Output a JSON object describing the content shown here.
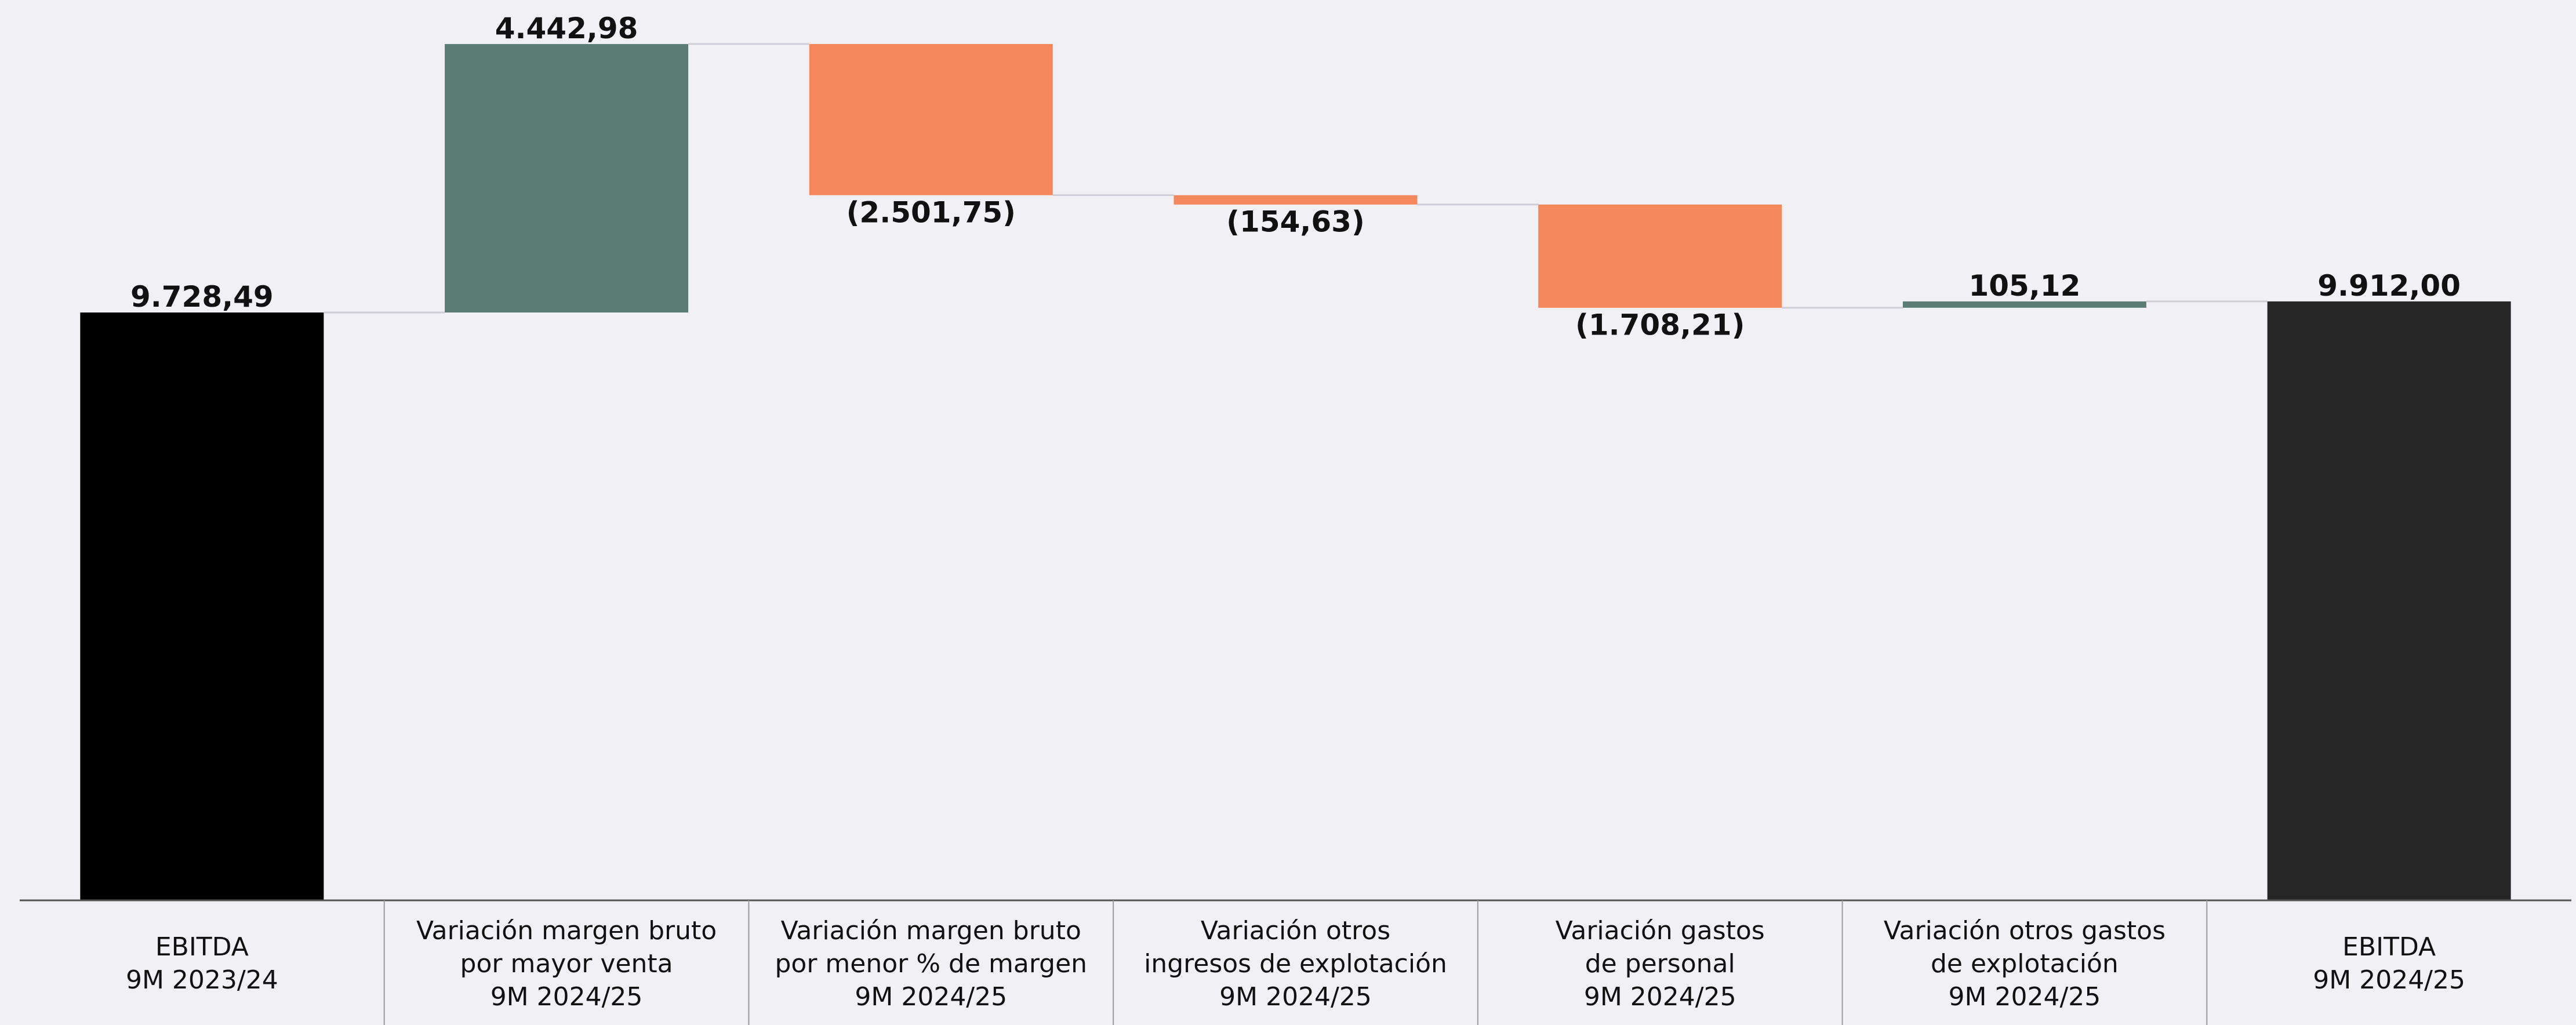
{
  "chart_data": {
    "type": "waterfall",
    "categories": [
      "EBITDA\n9M 2023/24",
      "Variación margen bruto\npor mayor venta\n9M 2024/25",
      "Variación margen bruto\npor menor % de margen\n9M 2024/25",
      "Variación otros\ningresos de explotación\n9M 2024/25",
      "Variación gastos\nde personal\n9M 2024/25",
      "Variación otros gastos\nde explotación\n9M 2024/25",
      "EBITDA\n9M 2024/25"
    ],
    "measure": [
      "absolute",
      "relative",
      "relative",
      "relative",
      "relative",
      "relative",
      "total"
    ],
    "values": [
      9728.49,
      4442.98,
      -2501.75,
      -154.63,
      -1708.21,
      105.12,
      9912.0
    ],
    "value_labels": [
      "9.728,49",
      "4.442,98",
      "(2.501,75)",
      "(154,63)",
      "(1.708,21)",
      "105,12",
      "9.912,00"
    ],
    "colors": {
      "absolute": "#000000",
      "increase": "#5b7d74",
      "decrease": "#f4875b",
      "total": "#262626"
    },
    "ylim": [
      0,
      14900
    ]
  }
}
